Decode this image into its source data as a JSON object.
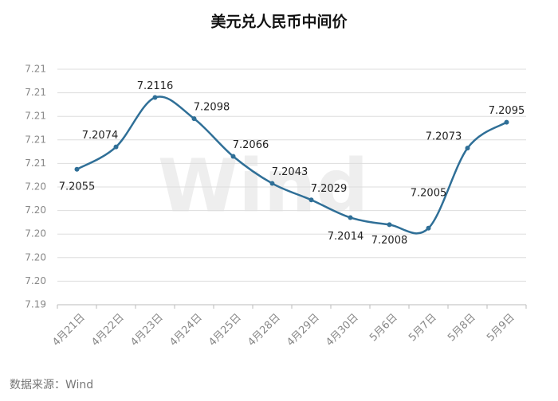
{
  "chart_data": {
    "type": "line",
    "title": "美元兑人民币中间价",
    "categories": [
      "4月21日",
      "4月22日",
      "4月23日",
      "4月24日",
      "4月25日",
      "4月28日",
      "4月29日",
      "4月30日",
      "5月6日",
      "5月7日",
      "5月8日",
      "5月9日"
    ],
    "series": [
      {
        "name": "美元兑人民币中间价",
        "color": "#2f6f97",
        "values": [
          7.2055,
          7.2074,
          7.2116,
          7.2098,
          7.2066,
          7.2043,
          7.2029,
          7.2014,
          7.2008,
          7.2005,
          7.2073,
          7.2095
        ]
      }
    ],
    "ylim": [
      7.194,
      7.214
    ],
    "yticks": [
      {
        "value": 7.194,
        "label": "7.19"
      },
      {
        "value": 7.196,
        "label": "7.20"
      },
      {
        "value": 7.198,
        "label": "7.20"
      },
      {
        "value": 7.2,
        "label": "7.20"
      },
      {
        "value": 7.202,
        "label": "7.20"
      },
      {
        "value": 7.204,
        "label": "7.20"
      },
      {
        "value": 7.206,
        "label": "7.21"
      },
      {
        "value": 7.208,
        "label": "7.21"
      },
      {
        "value": 7.21,
        "label": "7.21"
      },
      {
        "value": 7.212,
        "label": "7.21"
      },
      {
        "value": 7.214,
        "label": "7.21"
      }
    ],
    "grid": true,
    "smooth": true,
    "watermark": "Wind",
    "source": "数据来源：Wind"
  }
}
